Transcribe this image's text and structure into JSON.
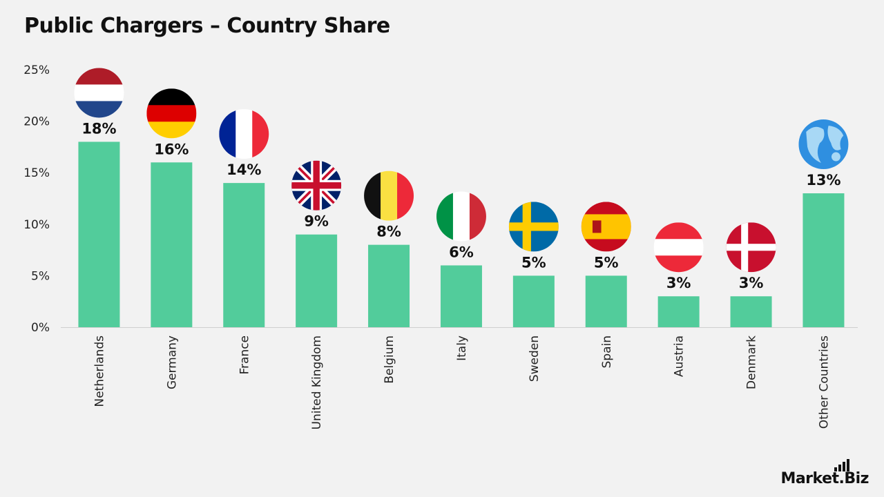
{
  "title": "Public Chargers – Country Share",
  "brand": {
    "name": "Market",
    "dot": ".",
    "suffix": "Biz"
  },
  "colors": {
    "bar": "#52cc9b",
    "axis": "#cfcfcf",
    "background": "#f2f2f2"
  },
  "chart_data": {
    "type": "bar",
    "title": "Public Chargers – Country Share",
    "xlabel": "",
    "ylabel": "",
    "ylim": [
      0,
      25
    ],
    "yticks": [
      0,
      5,
      10,
      15,
      20,
      25
    ],
    "ytick_labels": [
      "0%",
      "5%",
      "10%",
      "15%",
      "20%",
      "25%"
    ],
    "grid": false,
    "categories": [
      "Netherlands",
      "Germany",
      "France",
      "United Kingdom",
      "Belgium",
      "Italy",
      "Sweden",
      "Spain",
      "Austria",
      "Denmark",
      "Other Countries"
    ],
    "values": [
      18,
      16,
      14,
      9,
      8,
      6,
      5,
      5,
      3,
      3,
      13
    ],
    "value_labels": [
      "18%",
      "16%",
      "14%",
      "9%",
      "8%",
      "6%",
      "5%",
      "5%",
      "3%",
      "3%",
      "13%"
    ],
    "icons": [
      "netherlands-flag-icon",
      "germany-flag-icon",
      "france-flag-icon",
      "uk-flag-icon",
      "belgium-flag-icon",
      "italy-flag-icon",
      "sweden-flag-icon",
      "spain-flag-icon",
      "austria-flag-icon",
      "denmark-flag-icon",
      "globe-icon"
    ]
  }
}
